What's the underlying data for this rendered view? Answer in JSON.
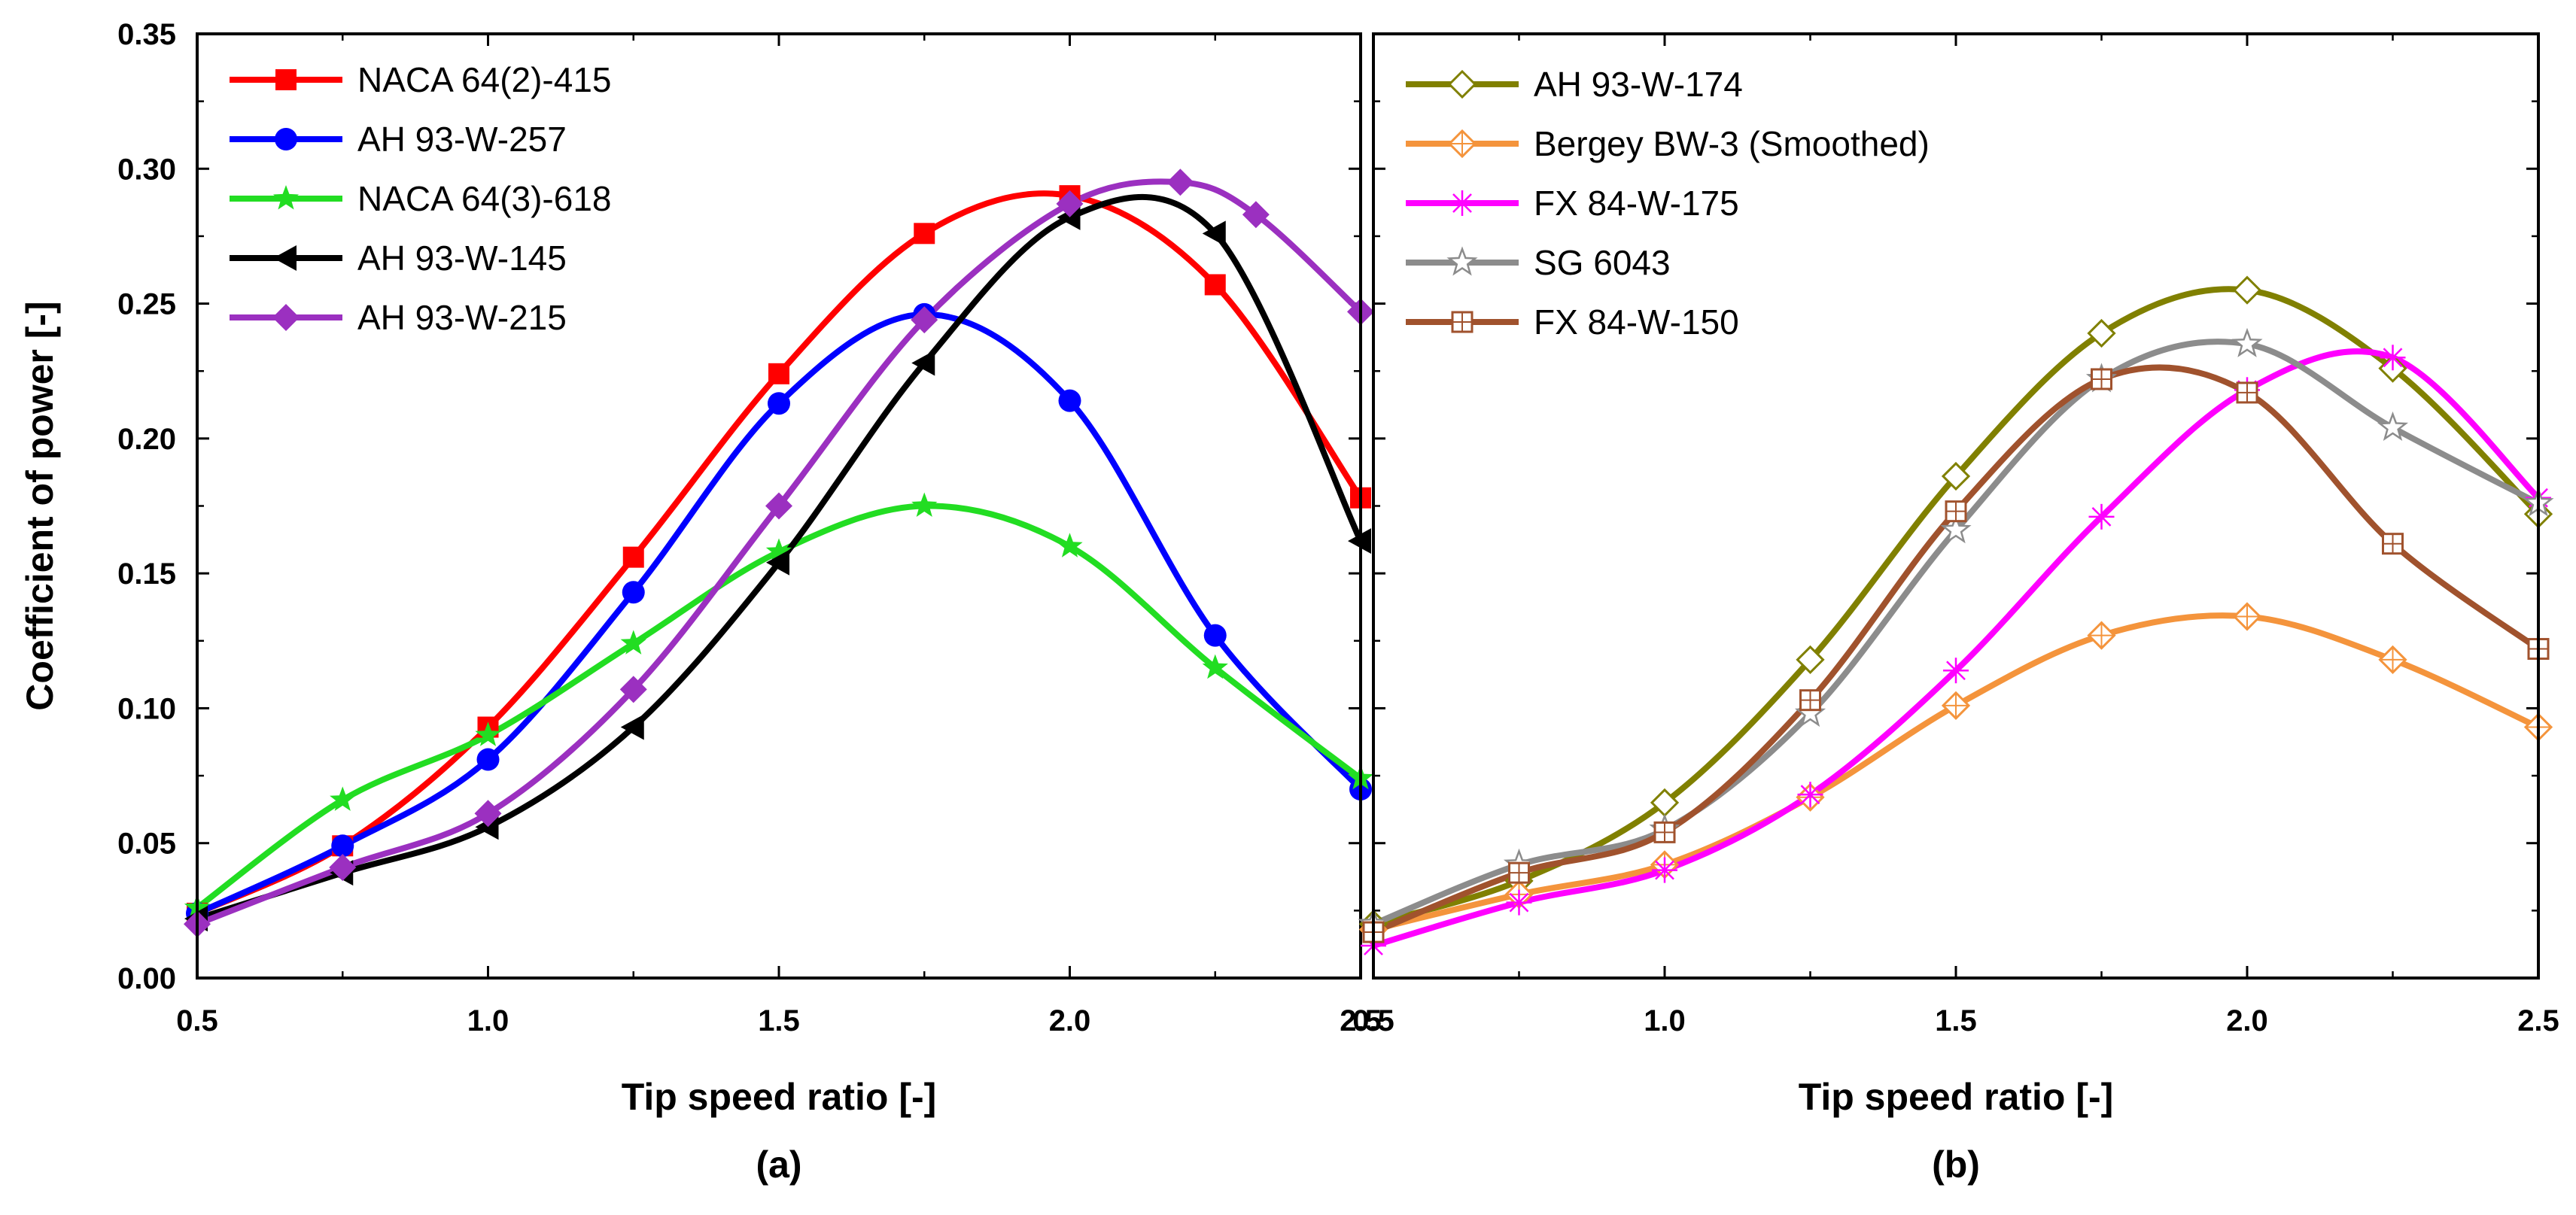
{
  "chart_data": [
    {
      "type": "line",
      "panel_label": "(a)",
      "xlabel": "Tip speed ratio [-]",
      "ylabel": "Coefficient of power [-]",
      "xlim": [
        0.5,
        2.5
      ],
      "ylim": [
        0.0,
        0.35
      ],
      "xticks": [
        "0.5",
        "1.0",
        "1.5",
        "2.0",
        "2.5"
      ],
      "yticks": [
        "0.00",
        "0.05",
        "0.10",
        "0.15",
        "0.20",
        "0.25",
        "0.30",
        "0.35"
      ],
      "legend_position": "top-left",
      "series": [
        {
          "name": "NACA 64(2)-415",
          "color": "#ff0000",
          "marker": "square-filled",
          "x": [
            0.5,
            0.75,
            1.0,
            1.25,
            1.5,
            1.75,
            2.0,
            2.25,
            2.5
          ],
          "y": [
            0.024,
            0.049,
            0.093,
            0.156,
            0.224,
            0.276,
            0.29,
            0.257,
            0.178
          ]
        },
        {
          "name": "AH 93-W-257",
          "color": "#0000ff",
          "marker": "circle-filled",
          "x": [
            0.5,
            0.75,
            1.0,
            1.25,
            1.5,
            1.75,
            2.0,
            2.25,
            2.5
          ],
          "y": [
            0.024,
            0.049,
            0.081,
            0.143,
            0.213,
            0.246,
            0.214,
            0.127,
            0.07
          ]
        },
        {
          "name": "NACA 64(3)-618",
          "color": "#22dd22",
          "marker": "star-filled",
          "x": [
            0.5,
            0.75,
            1.0,
            1.25,
            1.5,
            1.75,
            2.0,
            2.25,
            2.5
          ],
          "y": [
            0.026,
            0.066,
            0.09,
            0.124,
            0.158,
            0.175,
            0.16,
            0.115,
            0.074
          ]
        },
        {
          "name": "AH 93-W-145",
          "color": "#000000",
          "marker": "triangle-left-filled",
          "x": [
            0.5,
            0.75,
            1.0,
            1.25,
            1.5,
            1.75,
            2.0,
            2.25,
            2.5
          ],
          "y": [
            0.022,
            0.039,
            0.056,
            0.093,
            0.154,
            0.228,
            0.282,
            0.276,
            0.162
          ]
        },
        {
          "name": "AH 93-W-215",
          "color": "#9b30c0",
          "marker": "diamond-filled",
          "x": [
            0.5,
            0.75,
            1.0,
            1.25,
            1.5,
            1.75,
            2.0,
            2.19,
            2.32,
            2.5
          ],
          "y": [
            0.02,
            0.041,
            0.061,
            0.107,
            0.175,
            0.244,
            0.287,
            0.295,
            0.283,
            0.247
          ]
        }
      ]
    },
    {
      "type": "line",
      "panel_label": "(b)",
      "xlabel": "Tip speed ratio [-]",
      "ylabel": "",
      "xlim": [
        0.5,
        2.5
      ],
      "ylim": [
        0.0,
        0.35
      ],
      "xticks": [
        "0.5",
        "1.0",
        "1.5",
        "2.0",
        "2.5"
      ],
      "legend_position": "top-left",
      "series": [
        {
          "name": "AH 93-W-174",
          "color": "#808000",
          "marker": "diamond-open",
          "x": [
            0.5,
            0.75,
            1.0,
            1.25,
            1.5,
            1.75,
            2.0,
            2.25,
            2.5
          ],
          "y": [
            0.02,
            0.036,
            0.065,
            0.118,
            0.186,
            0.239,
            0.255,
            0.226,
            0.172
          ]
        },
        {
          "name": "Bergey BW-3 (Smoothed)",
          "color": "#f4943c",
          "marker": "diamond-plus-open",
          "x": [
            0.5,
            0.75,
            1.0,
            1.25,
            1.5,
            1.75,
            2.0,
            2.25,
            2.5
          ],
          "y": [
            0.018,
            0.031,
            0.042,
            0.067,
            0.101,
            0.127,
            0.134,
            0.118,
            0.093
          ]
        },
        {
          "name": "FX 84-W-175",
          "color": "#ff00ff",
          "marker": "asterisk",
          "x": [
            0.5,
            0.75,
            1.0,
            1.25,
            1.5,
            1.75,
            2.0,
            2.25,
            2.5
          ],
          "y": [
            0.012,
            0.028,
            0.04,
            0.068,
            0.114,
            0.171,
            0.218,
            0.23,
            0.178
          ]
        },
        {
          "name": "SG 6043",
          "color": "#8c8c8c",
          "marker": "star-open",
          "x": [
            0.5,
            0.75,
            1.0,
            1.25,
            1.5,
            1.75,
            2.0,
            2.25,
            2.5
          ],
          "y": [
            0.02,
            0.042,
            0.055,
            0.098,
            0.166,
            0.222,
            0.235,
            0.204,
            0.176
          ]
        },
        {
          "name": "FX 84-W-150",
          "color": "#a0522d",
          "marker": "square-plus-open",
          "x": [
            0.5,
            0.75,
            1.0,
            1.25,
            1.5,
            1.75,
            2.0,
            2.25,
            2.5
          ],
          "y": [
            0.017,
            0.039,
            0.054,
            0.103,
            0.173,
            0.222,
            0.217,
            0.161,
            0.122
          ]
        }
      ]
    }
  ]
}
